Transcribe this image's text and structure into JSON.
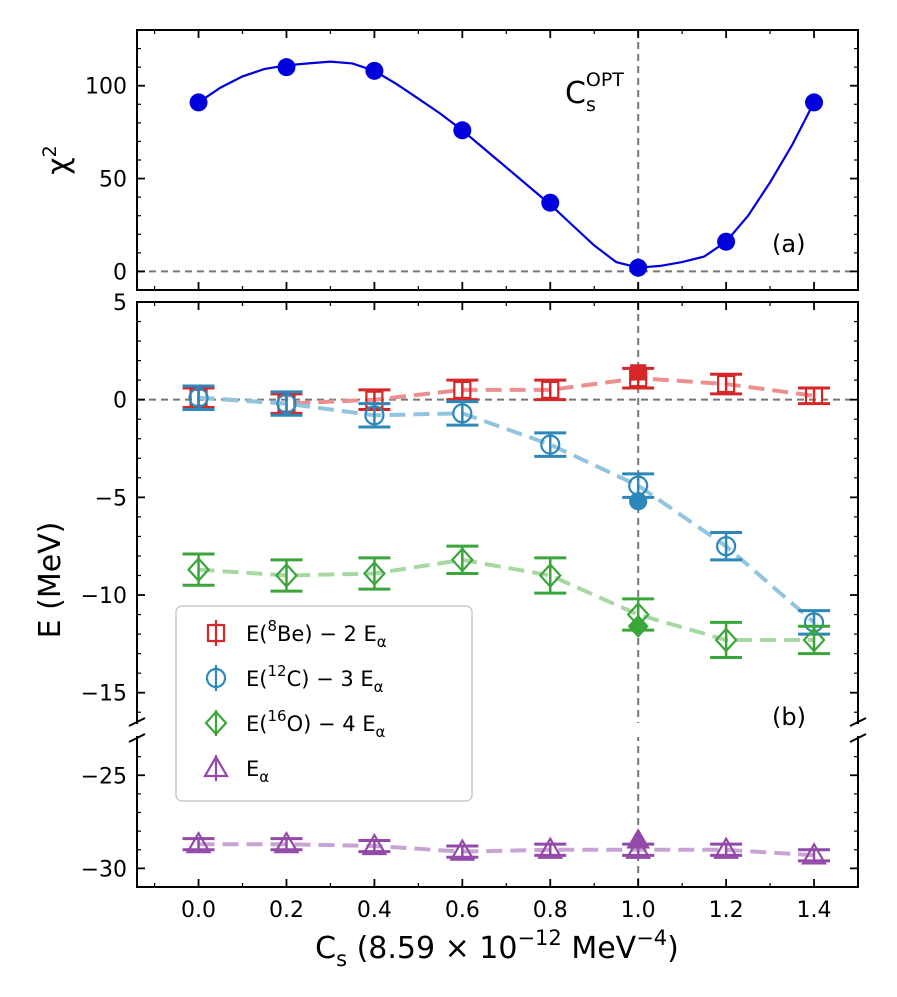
{
  "chart_data": [
    {
      "type": "line",
      "panel": "a",
      "panel_label": "(a)",
      "ylabel": "χ²",
      "ylabel_base": "χ",
      "ylabel_sup": "2",
      "ylim": [
        -10,
        130
      ],
      "yticks": [
        0,
        50,
        100
      ],
      "ytick_labels": [
        "0",
        "50",
        "100"
      ],
      "annotation": {
        "base": "C",
        "sub": "s",
        "sup": "OPT"
      },
      "reference_line_y": 0,
      "reference_line_x": 1.0,
      "series": [
        {
          "name": "chi2",
          "color": "#0000dd",
          "x": [
            0.0,
            0.2,
            0.4,
            0.6,
            0.8,
            1.0,
            1.2,
            1.4
          ],
          "y": [
            91,
            110,
            108,
            76,
            37,
            2,
            16,
            91
          ],
          "curve_x": [
            0.0,
            0.05,
            0.1,
            0.15,
            0.2,
            0.25,
            0.3,
            0.35,
            0.4,
            0.45,
            0.5,
            0.55,
            0.6,
            0.65,
            0.7,
            0.75,
            0.8,
            0.85,
            0.9,
            0.95,
            1.0,
            1.05,
            1.1,
            1.15,
            1.2,
            1.25,
            1.3,
            1.35,
            1.4
          ],
          "curve_y": [
            91,
            99,
            105,
            109,
            111,
            112,
            113,
            112,
            108,
            101,
            93,
            85,
            76,
            66,
            56,
            46,
            36,
            25,
            14,
            5,
            2,
            3,
            5,
            8,
            16,
            30,
            48,
            68,
            91
          ]
        }
      ]
    },
    {
      "type": "line",
      "panel": "b",
      "panel_label": "(b)",
      "xlabel": "C_s (8.59 × 10^−12 MeV^−4)",
      "xlabel_parts": {
        "base": "C",
        "sub": "s",
        "mid": " (8.59 × 10",
        "exp1": "−12",
        "unit": " MeV",
        "exp2": "−4",
        "end": ")"
      },
      "ylabel": "E (MeV)",
      "x": [
        0.0,
        0.2,
        0.4,
        0.6,
        0.8,
        1.0,
        1.2,
        1.4
      ],
      "xlim": [
        -0.14,
        1.5
      ],
      "xticks": [
        0.0,
        0.2,
        0.4,
        0.6,
        0.8,
        1.0,
        1.2,
        1.4
      ],
      "xtick_labels": [
        "0.0",
        "0.2",
        "0.4",
        "0.6",
        "0.8",
        "1.0",
        "1.2",
        "1.4"
      ],
      "upper_ylim": [
        -16.5,
        5
      ],
      "upper_yticks": [
        5,
        0,
        -5,
        -10,
        -15
      ],
      "upper_ytick_labels": [
        "5",
        "0",
        "−5",
        "−10",
        "−15"
      ],
      "lower_ylim": [
        -31,
        -23
      ],
      "lower_yticks": [
        -25,
        -30
      ],
      "lower_ytick_labels": [
        "−25",
        "−30"
      ],
      "series": [
        {
          "name": "E(8Be) − 2 Eα",
          "legend": {
            "prefix": "E(",
            "sup": "8",
            "mid": "Be) − 2 E",
            "sub": "α",
            "suffix": ""
          },
          "marker": "square",
          "color": "#d62728",
          "line_color": "#ec8f90",
          "y": [
            0.1,
            -0.2,
            0.0,
            0.5,
            0.5,
            1.1,
            0.8,
            0.2
          ],
          "err": [
            0.5,
            0.5,
            0.5,
            0.5,
            0.5,
            0.5,
            0.5,
            0.4
          ],
          "filled_at_opt": 1.4
        },
        {
          "name": "E(12C) − 3 Eα",
          "legend": {
            "prefix": "E(",
            "sup": "12",
            "mid": "C) − 3 E",
            "sub": "α",
            "suffix": ""
          },
          "marker": "circle",
          "color": "#2d87b8",
          "line_color": "#93c4df",
          "y": [
            0.1,
            -0.2,
            -0.8,
            -0.7,
            -2.3,
            -4.4,
            -7.5,
            -11.4
          ],
          "err": [
            0.6,
            0.6,
            0.6,
            0.6,
            0.6,
            0.6,
            0.7,
            0.6
          ],
          "filled_at_opt": -5.2
        },
        {
          "name": "E(16O) − 4 Eα",
          "legend": {
            "prefix": "E(",
            "sup": "16",
            "mid": "O) − 4 E",
            "sub": "α",
            "suffix": ""
          },
          "marker": "diamond",
          "color": "#3aa63a",
          "line_color": "#a7d8a1",
          "y": [
            -8.7,
            -9.0,
            -8.9,
            -8.2,
            -9.0,
            -11.0,
            -12.3,
            -12.3
          ],
          "err": [
            0.8,
            0.8,
            0.8,
            0.7,
            0.9,
            0.8,
            0.9,
            0.7
          ],
          "filled_at_opt": -11.6
        },
        {
          "name": "Eα",
          "legend": {
            "prefix": "E",
            "sup": "",
            "mid": "",
            "sub": "α",
            "suffix": ""
          },
          "marker": "triangle",
          "color": "#9249a8",
          "line_color": "#c7a4d3",
          "y": [
            -28.7,
            -28.7,
            -28.8,
            -29.1,
            -29.0,
            -29.0,
            -29.0,
            -29.3
          ],
          "err": [
            0.3,
            0.3,
            0.3,
            0.3,
            0.3,
            0.3,
            0.3,
            0.3
          ],
          "filled_at_opt": -28.5
        }
      ]
    }
  ]
}
